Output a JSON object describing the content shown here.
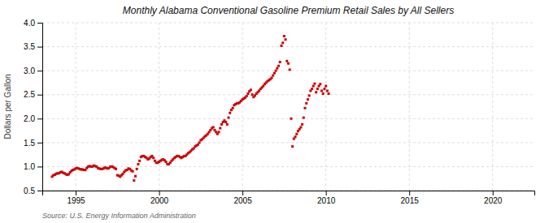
{
  "chart_data": {
    "type": "scatter",
    "title": "Monthly Alabama Conventional Gasoline Premium Retail Sales by All Sellers",
    "ylabel": "Dollars per Gallon",
    "source": "Source: U.S. Energy Information Administration",
    "color": "#cc0000",
    "marker": "square",
    "grid": true,
    "xlim": [
      1993.0,
      2022.5
    ],
    "ylim": [
      0.5,
      4.0
    ],
    "xticks": [
      1995,
      2000,
      2005,
      2010,
      2015,
      2020
    ],
    "yticks": [
      0.5,
      {
        "value": 1.0,
        "label": "1.0"
      },
      1.5,
      {
        "value": 2.0,
        "label": "2.0"
      },
      2.5,
      {
        "value": 3.0,
        "label": "3.0"
      },
      3.5,
      {
        "value": 4.0,
        "label": "4.0"
      }
    ],
    "x": [
      1993.5833,
      1993.6667,
      1993.75,
      1993.8333,
      1993.9167,
      1994,
      1994.0833,
      1994.1667,
      1994.25,
      1994.3333,
      1994.4167,
      1994.5,
      1994.5833,
      1994.6667,
      1994.75,
      1994.8333,
      1994.9167,
      1995,
      1995.0833,
      1995.1667,
      1995.25,
      1995.3333,
      1995.4167,
      1995.5,
      1995.5833,
      1995.6667,
      1995.75,
      1995.8333,
      1995.9167,
      1996,
      1996.0833,
      1996.1667,
      1996.25,
      1996.3333,
      1996.4167,
      1996.5,
      1996.5833,
      1996.6667,
      1996.75,
      1996.8333,
      1996.9167,
      1997,
      1997.0833,
      1997.1667,
      1997.25,
      1997.3333,
      1997.4167,
      1997.5,
      1997.5833,
      1997.6667,
      1997.75,
      1997.8333,
      1997.9167,
      1998,
      1998.0833,
      1998.1667,
      1998.25,
      1998.3333,
      1998.4167,
      1998.5,
      1998.5833,
      1998.6667,
      1998.75,
      1998.8333,
      1998.9167,
      1999,
      1999.0833,
      1999.1667,
      1999.25,
      1999.3333,
      1999.4167,
      1999.5,
      1999.5833,
      1999.6667,
      1999.75,
      1999.8333,
      1999.9167,
      2000,
      2000.0833,
      2000.1667,
      2000.25,
      2000.3333,
      2000.4167,
      2000.5,
      2000.5833,
      2000.6667,
      2000.75,
      2000.8333,
      2000.9167,
      2001,
      2001.0833,
      2001.1667,
      2001.25,
      2001.3333,
      2001.4167,
      2001.5,
      2001.5833,
      2001.6667,
      2001.75,
      2001.8333,
      2001.9167,
      2002,
      2002.0833,
      2002.1667,
      2002.25,
      2002.3333,
      2002.4167,
      2002.5,
      2002.5833,
      2002.6667,
      2002.75,
      2002.8333,
      2002.9167,
      2003,
      2003.0833,
      2003.1667,
      2003.25,
      2003.3333,
      2003.4167,
      2003.5,
      2003.5833,
      2003.6667,
      2003.75,
      2003.8333,
      2003.9167,
      2004,
      2004.0833,
      2004.1667,
      2004.25,
      2004.3333,
      2004.4167,
      2004.5,
      2004.5833,
      2004.6667,
      2004.75,
      2004.8333,
      2004.9167,
      2005,
      2005.0833,
      2005.1667,
      2005.25,
      2005.3333,
      2005.4167,
      2005.5,
      2005.5833,
      2005.6667,
      2005.75,
      2005.8333,
      2005.9167,
      2006,
      2006.0833,
      2006.1667,
      2006.25,
      2006.3333,
      2006.4167,
      2006.5,
      2006.5833,
      2006.6667,
      2006.75,
      2006.8333,
      2006.9167,
      2007,
      2007.0833,
      2007.1667,
      2007.25,
      2007.3333,
      2007.4167,
      2007.5,
      2007.5833,
      2007.6667,
      2007.75,
      2007.8333,
      2007.9167,
      2008,
      2008.0833,
      2008.1667,
      2008.25,
      2008.3333,
      2008.4167,
      2008.5,
      2008.5833,
      2008.6667,
      2008.75,
      2008.8333,
      2008.9167,
      2009,
      2009.0833,
      2009.1667,
      2009.25,
      2009.3333,
      2009.4167,
      2009.5,
      2009.5833,
      2009.6667,
      2009.75,
      2009.8333,
      2009.9167,
      2010,
      2010.0833,
      2010.1667
    ],
    "values": [
      0.79,
      0.82,
      0.83,
      0.85,
      0.86,
      0.86,
      0.88,
      0.89,
      0.87,
      0.86,
      0.84,
      0.83,
      0.84,
      0.88,
      0.91,
      0.93,
      0.94,
      0.96,
      0.97,
      0.96,
      0.95,
      0.94,
      0.94,
      0.93,
      0.93,
      0.97,
      1.0,
      1.01,
      1.0,
      1.0,
      1.02,
      1.01,
      1.0,
      0.97,
      0.96,
      0.95,
      0.95,
      0.96,
      0.98,
      0.97,
      0.96,
      0.97,
      1.0,
      1.0,
      0.99,
      0.97,
      0.95,
      0.82,
      0.81,
      0.79,
      0.82,
      0.85,
      0.89,
      0.92,
      0.93,
      0.96,
      0.95,
      0.92,
      0.9,
      0.71,
      0.8,
      0.95,
      1.05,
      1.12,
      1.2,
      1.22,
      1.22,
      1.2,
      1.18,
      1.15,
      1.17,
      1.2,
      1.22,
      1.18,
      1.12,
      1.08,
      1.08,
      1.1,
      1.12,
      1.14,
      1.15,
      1.13,
      1.1,
      1.05,
      1.05,
      1.08,
      1.12,
      1.15,
      1.18,
      1.2,
      1.22,
      1.22,
      1.2,
      1.18,
      1.2,
      1.22,
      1.22,
      1.25,
      1.28,
      1.3,
      1.33,
      1.36,
      1.38,
      1.42,
      1.44,
      1.46,
      1.5,
      1.55,
      1.57,
      1.6,
      1.63,
      1.65,
      1.68,
      1.72,
      1.76,
      1.8,
      1.82,
      1.76,
      1.72,
      1.68,
      1.72,
      1.8,
      1.88,
      1.93,
      1.96,
      1.93,
      1.88,
      2.02,
      2.12,
      2.18,
      2.22,
      2.28,
      2.3,
      2.32,
      2.32,
      2.34,
      2.37,
      2.4,
      2.42,
      2.44,
      2.47,
      2.52,
      2.57,
      2.6,
      2.5,
      2.45,
      2.48,
      2.52,
      2.55,
      2.58,
      2.62,
      2.65,
      2.68,
      2.72,
      2.75,
      2.78,
      2.8,
      2.82,
      2.85,
      2.9,
      2.95,
      3.0,
      3.05,
      3.1,
      3.18,
      3.52,
      3.58,
      3.72,
      3.65,
      3.2,
      3.15,
      3.02,
      2.0,
      1.42,
      1.58,
      1.62,
      1.68,
      1.74,
      1.78,
      1.82,
      1.88,
      2.02,
      2.22,
      2.32,
      2.4,
      2.48,
      2.58,
      2.62,
      2.68,
      2.73,
      2.55,
      2.62,
      2.68,
      2.72,
      2.58,
      2.52,
      2.62,
      2.68,
      2.58,
      2.52
    ]
  }
}
